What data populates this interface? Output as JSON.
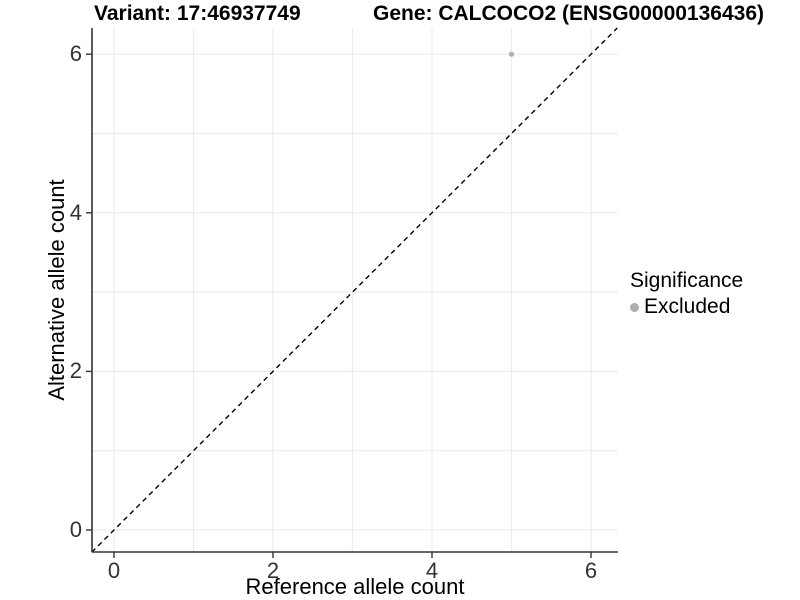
{
  "chart_data": {
    "type": "scatter",
    "title_left": "Variant: 17:46937749",
    "title_right": "Gene: CALCOCO2 (ENSG00000136436)",
    "xlabel": "Reference allele count",
    "ylabel": "Alternative allele count",
    "xlim": [
      -0.29,
      6.34
    ],
    "ylim": [
      -0.28,
      6.33
    ],
    "x_ticks": [
      0,
      2,
      4,
      6
    ],
    "y_ticks": [
      0,
      2,
      4,
      6
    ],
    "grid_step": 1,
    "grid_on": true,
    "points": [
      {
        "x": 5,
        "y": 6,
        "series": "Excluded"
      }
    ],
    "identity_line": {
      "type": "y=x",
      "style": "dashed"
    },
    "legend": {
      "position": "right",
      "title": "Significance",
      "items": [
        {
          "label": "Excluded",
          "color": "#aeaeae"
        }
      ]
    },
    "colors": {
      "point": "#aeaeae",
      "grid": "#ececec",
      "axis": "#333333",
      "identity_line": "#000000",
      "tick_label": "#333333",
      "title": "#000000"
    }
  }
}
